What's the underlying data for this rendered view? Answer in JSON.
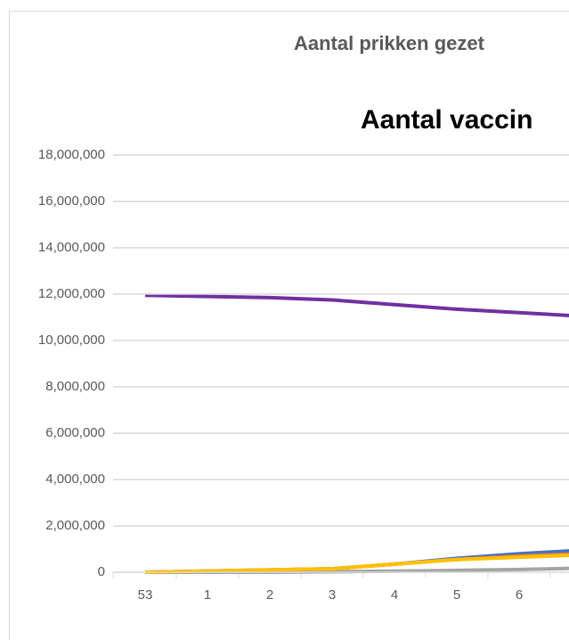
{
  "chart_data": {
    "type": "line",
    "title": "Aantal prikken gezet",
    "subtitle": "Aantal vaccin",
    "categories": [
      "53",
      "1",
      "2",
      "3",
      "4",
      "5",
      "6",
      null
    ],
    "series": [
      {
        "color": "#7030a0",
        "values": [
          11950000,
          11900000,
          11850000,
          11750000,
          11550000,
          11350000,
          11200000,
          11050000
        ]
      },
      {
        "color": "#a5a5a5",
        "values": [
          0,
          0,
          0,
          20000,
          50000,
          80000,
          120000,
          180000
        ]
      },
      {
        "color": "#4472c4",
        "values": [
          0,
          50000,
          100000,
          150000,
          350000,
          600000,
          800000,
          950000
        ]
      },
      {
        "color": "#ed7d31",
        "values": [
          0,
          50000,
          100000,
          150000,
          350000,
          550000,
          700000,
          800000
        ]
      },
      {
        "color": "#ffc000",
        "values": [
          0,
          50000,
          100000,
          150000,
          350000,
          550000,
          650000,
          750000
        ]
      }
    ],
    "ylim": [
      0,
      18000000
    ],
    "yticks": [
      0,
      {
        "value": 2000000,
        "label": "2,000,000"
      },
      {
        "value": 4000000,
        "label": "4,000,000"
      },
      {
        "value": 6000000,
        "label": "6,000,000"
      },
      {
        "value": 8000000,
        "label": "8,000,000"
      },
      {
        "value": 10000000,
        "label": "10,000,000"
      },
      {
        "value": 12000000,
        "label": "12,000,000"
      },
      {
        "value": 14000000,
        "label": "14,000,000"
      },
      {
        "value": 16000000,
        "label": "16,000,000"
      },
      {
        "value": 18000000,
        "label": "18,000,000"
      }
    ],
    "grid": true
  }
}
